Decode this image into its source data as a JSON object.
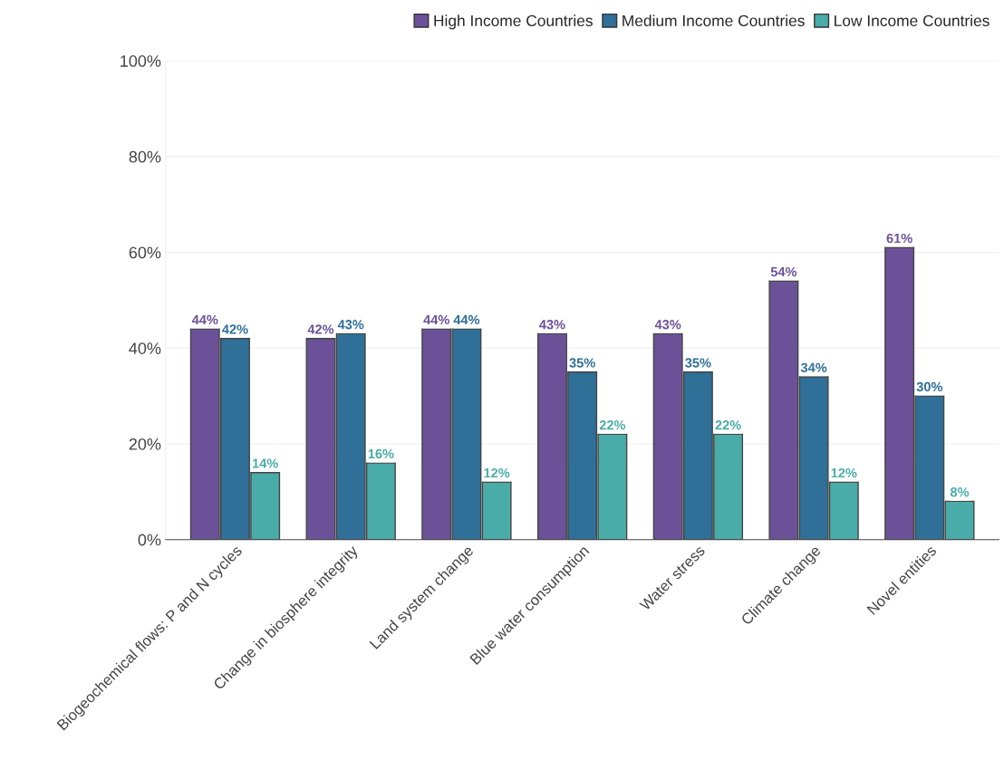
{
  "chart_data": {
    "type": "bar",
    "categories": [
      "Biogeochemical flows: P and N cycles",
      "Change in biosphere integrity",
      "Land system change",
      "Blue water consumption",
      "Water stress",
      "Climate change",
      "Novel entities"
    ],
    "series": [
      {
        "name": "High Income Countries",
        "color": "#6b5298",
        "values": [
          44,
          42,
          44,
          43,
          43,
          54,
          61
        ],
        "value_labels": [
          "44%",
          "42%",
          "44%",
          "43%",
          "43%",
          "54%",
          "61%"
        ]
      },
      {
        "name": "Medium Income Countries",
        "color": "#2f6f98",
        "values": [
          42,
          43,
          44,
          35,
          35,
          34,
          30
        ],
        "value_labels": [
          "42%",
          "43%",
          "44%",
          "35%",
          "35%",
          "34%",
          "30%"
        ]
      },
      {
        "name": "Low Income Countries",
        "color": "#4aaca8",
        "values": [
          14,
          16,
          12,
          22,
          22,
          12,
          8
        ],
        "value_labels": [
          "14%",
          "16%",
          "12%",
          "22%",
          "22%",
          "12%",
          "8%"
        ]
      }
    ],
    "ylim": [
      0,
      100
    ],
    "yticks": [
      {
        "value": 0,
        "label": "0%"
      },
      {
        "value": 20,
        "label": "20%"
      },
      {
        "value": 40,
        "label": "40%"
      },
      {
        "value": 60,
        "label": "60%"
      },
      {
        "value": 80,
        "label": "80%"
      },
      {
        "value": 100,
        "label": "100%"
      }
    ],
    "grid": "y",
    "legend": "top right"
  }
}
